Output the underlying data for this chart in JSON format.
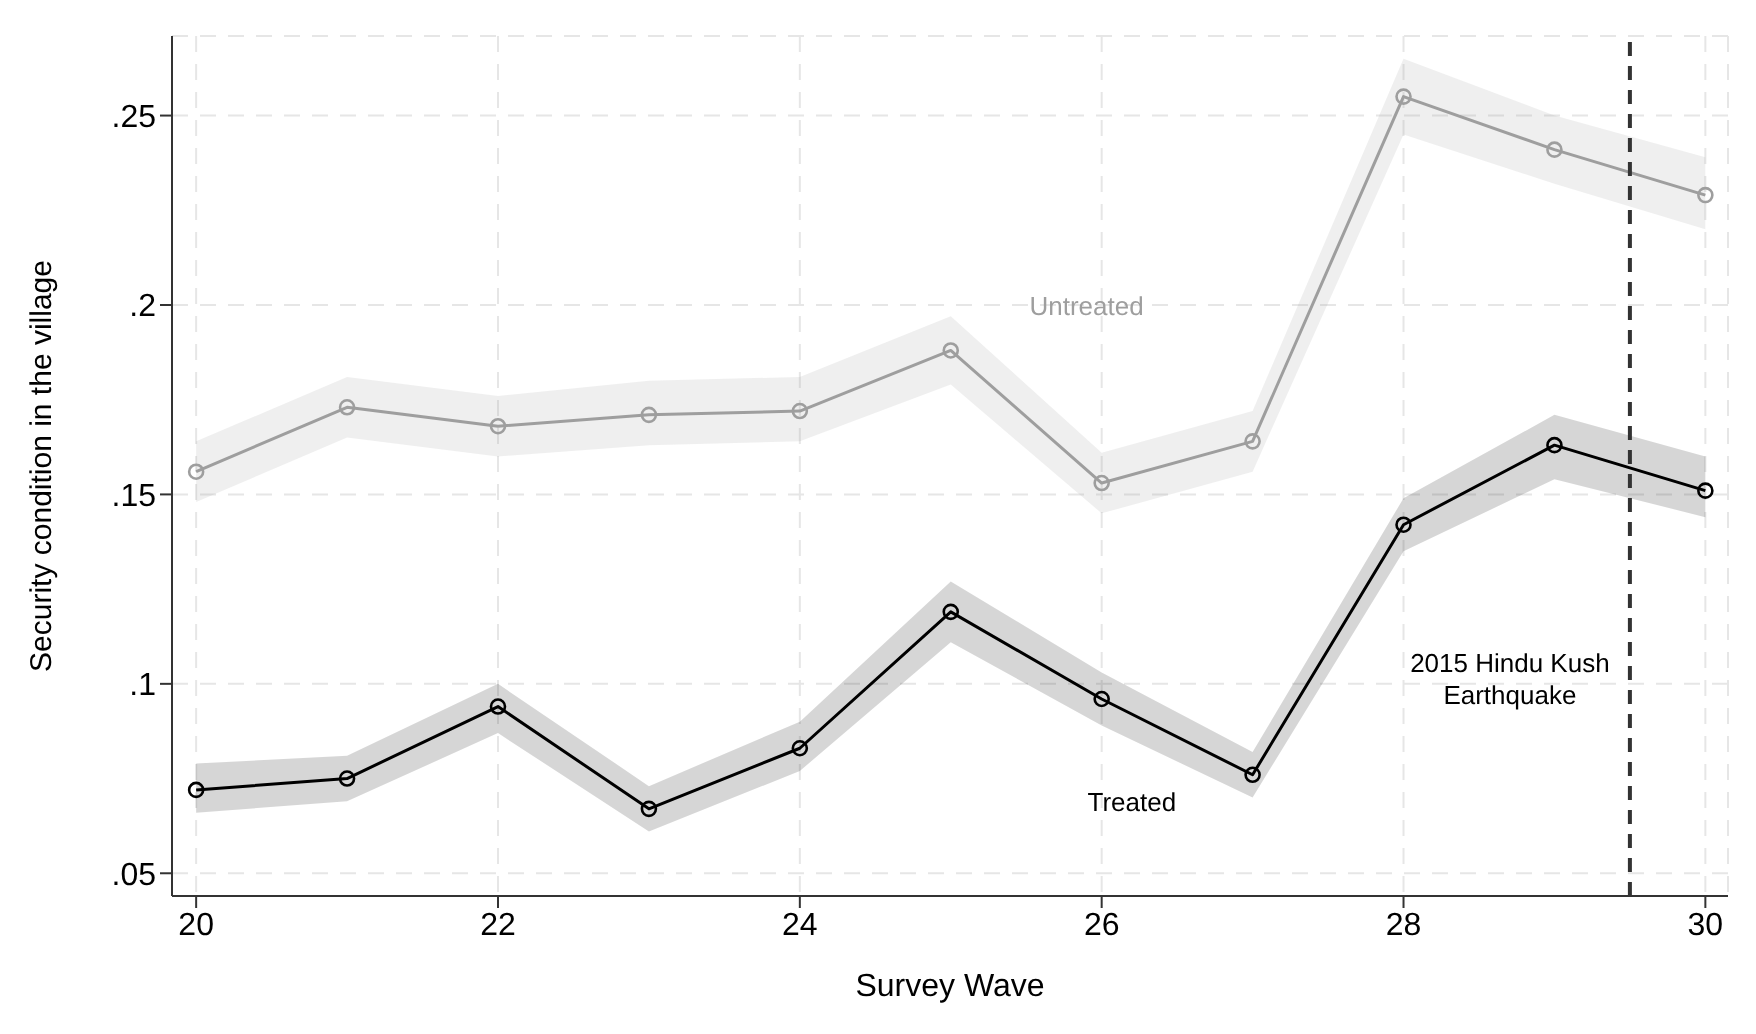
{
  "chart_data": {
    "type": "line",
    "xlabel": "Survey Wave",
    "ylabel": "Security condition in the village",
    "x": [
      20,
      21,
      22,
      23,
      24,
      25,
      26,
      27,
      28,
      29,
      30
    ],
    "series": [
      {
        "name": "Untreated",
        "color": "#9e9e9e",
        "values": [
          0.156,
          0.173,
          0.168,
          0.171,
          0.172,
          0.188,
          0.153,
          0.164,
          0.255,
          0.241,
          0.229
        ],
        "lower": [
          0.148,
          0.165,
          0.16,
          0.163,
          0.164,
          0.179,
          0.145,
          0.156,
          0.245,
          0.232,
          0.22
        ],
        "upper": [
          0.164,
          0.181,
          0.176,
          0.18,
          0.181,
          0.197,
          0.161,
          0.172,
          0.265,
          0.25,
          0.239
        ]
      },
      {
        "name": "Treated",
        "color": "#000000",
        "values": [
          0.072,
          0.075,
          0.094,
          0.067,
          0.083,
          0.119,
          0.096,
          0.076,
          0.142,
          0.163,
          0.151
        ],
        "lower": [
          0.066,
          0.069,
          0.087,
          0.061,
          0.077,
          0.111,
          0.089,
          0.07,
          0.135,
          0.154,
          0.144
        ],
        "upper": [
          0.079,
          0.081,
          0.1,
          0.073,
          0.09,
          0.127,
          0.103,
          0.082,
          0.149,
          0.171,
          0.16
        ]
      }
    ],
    "xlim": [
      19.84,
      30.15
    ],
    "xticks": [
      20,
      22,
      24,
      26,
      28,
      30
    ],
    "ylim": [
      0.044,
      0.271
    ],
    "yticks": [
      {
        "value": 0.05,
        "label": ".05"
      },
      {
        "value": 0.1,
        "label": ".1"
      },
      {
        "value": 0.15,
        "label": ".15"
      },
      {
        "value": 0.2,
        "label": ".2"
      },
      {
        "value": 0.25,
        "label": ".25"
      }
    ],
    "ref_lines": [
      {
        "axis": "x",
        "value": 29.5,
        "label": "2015 Hindu Kush Earthquake",
        "color": "#333333",
        "line_style": "dashed"
      }
    ],
    "grid": true,
    "legend": false,
    "marker": "circle",
    "line_style": "solid"
  }
}
